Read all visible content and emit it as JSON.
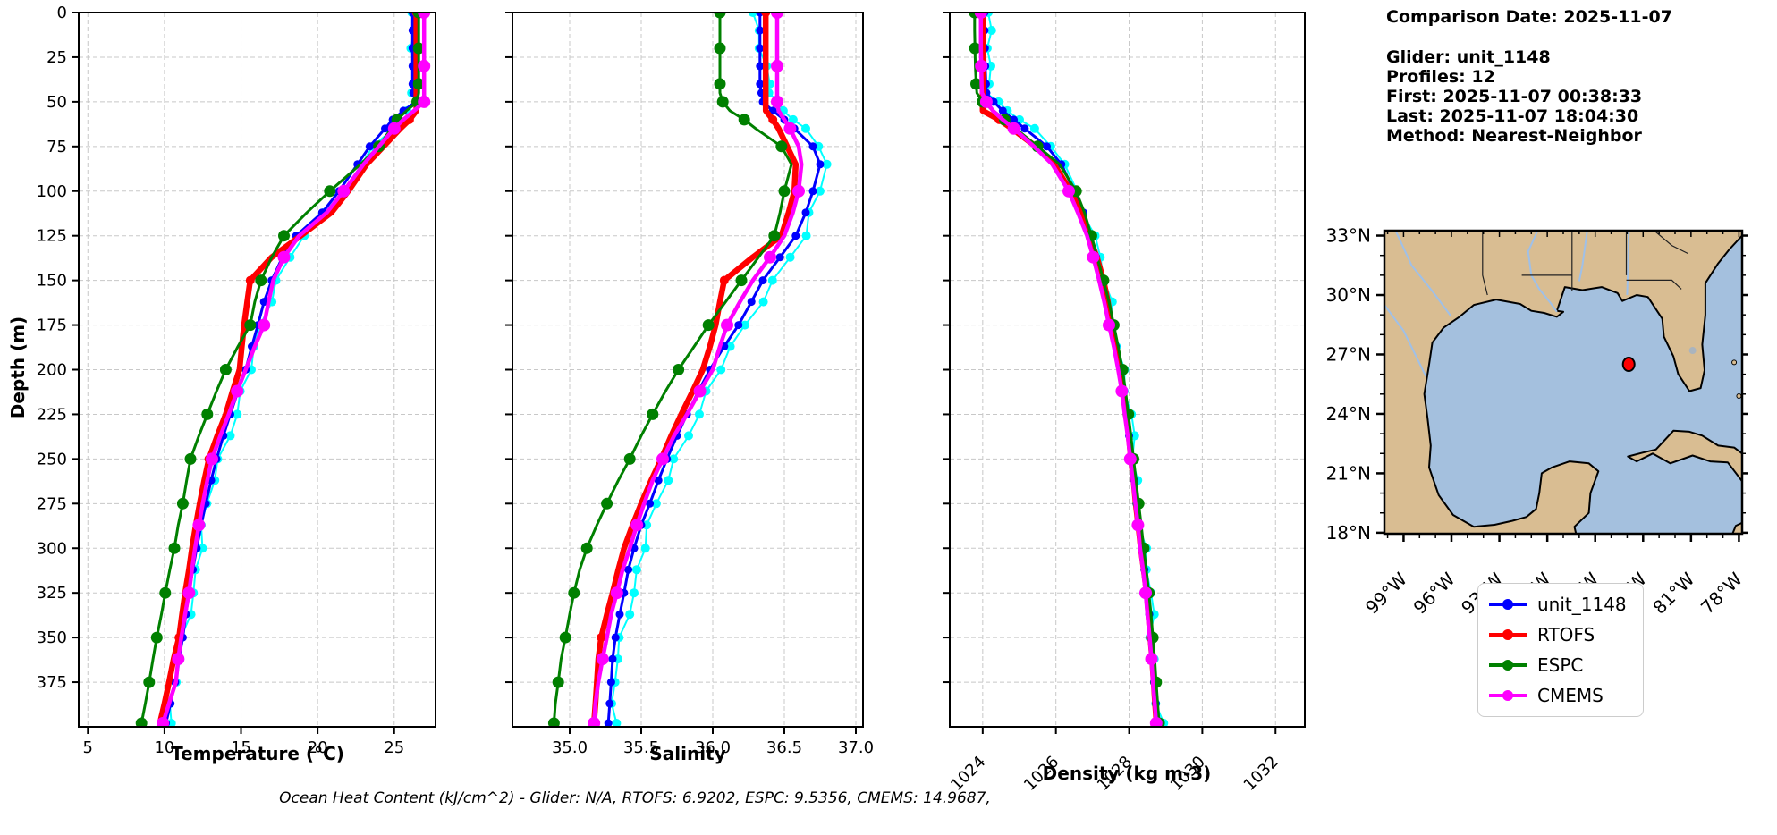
{
  "info_panel": {
    "date_line": "Comparison Date: 2025-11-07",
    "glider_line": "Glider: unit_1148",
    "profiles_line": "Profiles: 12",
    "first_line": "First: 2025-11-07 00:38:33",
    "last_line": "Last: 2025-11-07 18:04:30",
    "method_line": "Method: Nearest-Neighbor"
  },
  "caption": "Ocean Heat Content (kJ/cm^2) - Glider: N/A,  RTOFS: 6.9202,  ESPC: 9.5356,  CMEMS: 14.9687,",
  "legend": {
    "items": [
      {
        "label": "unit_1148",
        "color": "#0000ff"
      },
      {
        "label": "RTOFS",
        "color": "#ff0000"
      },
      {
        "label": "ESPC",
        "color": "#008000"
      },
      {
        "label": "CMEMS",
        "color": "#ff00ff"
      }
    ]
  },
  "chart_data": {
    "type": "line",
    "title": "",
    "ylabel": "Depth (m)",
    "ylim": [
      0,
      400
    ],
    "yticks": [
      0,
      25,
      50,
      75,
      100,
      125,
      150,
      175,
      200,
      225,
      250,
      275,
      300,
      325,
      350,
      375
    ],
    "grid": true,
    "depths": [
      0,
      10,
      20,
      30,
      40,
      45,
      50,
      55,
      60,
      65,
      75,
      85,
      100,
      112,
      125,
      137,
      150,
      162,
      175,
      187,
      200,
      212,
      225,
      237,
      250,
      262,
      275,
      287,
      300,
      312,
      325,
      337,
      350,
      362,
      375,
      387,
      398
    ],
    "panels": [
      {
        "id": "temperature",
        "xlabel": "Temperature (°C)",
        "xlim": [
          4.4,
          27.7
        ],
        "xticks": [
          5,
          10,
          15,
          20,
          25
        ],
        "xtick_labels": [
          "5",
          "10",
          "15",
          "20",
          "25"
        ],
        "rotate_xticks": false
      },
      {
        "id": "salinity",
        "xlabel": "Salinity",
        "xlim": [
          34.6,
          37.05
        ],
        "xticks": [
          35.0,
          35.5,
          36.0,
          36.5,
          37.0
        ],
        "xtick_labels": [
          "35.0",
          "35.5",
          "36.0",
          "36.5",
          "37.0"
        ],
        "rotate_xticks": false
      },
      {
        "id": "density",
        "xlabel": "Density (kg m-3)",
        "xlim": [
          1023.1,
          1032.8
        ],
        "xticks": [
          1024,
          1026,
          1028,
          1030,
          1032
        ],
        "xtick_labels": [
          "1024",
          "1026",
          "1028",
          "1030",
          "1032"
        ],
        "rotate_xticks": true
      }
    ],
    "series": [
      {
        "name": "profiles",
        "color": "#00ffff",
        "in_legend": false,
        "temperature": [
          26.15,
          26.1,
          26.15,
          26.2,
          26.3,
          26.4,
          26.5,
          25.9,
          25.2,
          24.7,
          23.7,
          22.9,
          21.7,
          20.7,
          19.0,
          18.1,
          17.3,
          16.8,
          16.4,
          16.0,
          15.6,
          15.1,
          14.6,
          14.1,
          13.6,
          13.2,
          12.9,
          12.6,
          12.3,
          12.05,
          11.8,
          11.55,
          11.3,
          11.05,
          10.8,
          10.5,
          10.2
        ],
        "salinity": [
          36.28,
          36.3,
          36.33,
          36.36,
          36.4,
          36.42,
          36.45,
          36.5,
          36.56,
          36.62,
          36.75,
          36.8,
          36.75,
          36.7,
          36.64,
          36.53,
          36.42,
          36.33,
          36.24,
          36.14,
          36.05,
          35.97,
          35.89,
          35.81,
          35.74,
          35.68,
          35.62,
          35.56,
          35.51,
          35.47,
          35.44,
          35.4,
          35.37,
          35.34,
          35.32,
          35.31,
          35.3
        ],
        "density": [
          1024.15,
          1024.15,
          1024.15,
          1024.16,
          1024.18,
          1024.2,
          1024.4,
          1024.7,
          1025.0,
          1025.3,
          1025.9,
          1026.25,
          1026.58,
          1026.82,
          1027.02,
          1027.17,
          1027.32,
          1027.45,
          1027.57,
          1027.72,
          1027.85,
          1027.93,
          1028.0,
          1028.07,
          1028.14,
          1028.2,
          1028.27,
          1028.34,
          1028.4,
          1028.48,
          1028.56,
          1028.61,
          1028.66,
          1028.7,
          1028.74,
          1028.79,
          1028.84
        ]
      },
      {
        "name": "unit_1148",
        "color": "#0000ff",
        "in_legend": true,
        "temperature": [
          26.2,
          26.2,
          26.2,
          26.2,
          26.2,
          26.25,
          26.4,
          25.6,
          24.9,
          24.4,
          23.4,
          22.6,
          21.4,
          20.3,
          18.6,
          17.7,
          17.0,
          16.5,
          16.1,
          15.7,
          15.3,
          14.8,
          14.3,
          13.85,
          13.4,
          13.05,
          12.7,
          12.4,
          12.1,
          11.85,
          11.6,
          11.4,
          11.2,
          10.95,
          10.7,
          10.4,
          10.1
        ],
        "salinity": [
          36.33,
          36.33,
          36.33,
          36.33,
          36.33,
          36.34,
          36.35,
          36.42,
          36.5,
          36.57,
          36.7,
          36.75,
          36.7,
          36.65,
          36.58,
          36.47,
          36.35,
          36.27,
          36.18,
          36.08,
          35.98,
          35.9,
          35.82,
          35.75,
          35.68,
          35.62,
          35.56,
          35.5,
          35.45,
          35.41,
          35.38,
          35.35,
          35.32,
          35.3,
          35.29,
          35.28,
          35.27
        ],
        "density": [
          1024.05,
          1024.05,
          1024.06,
          1024.07,
          1024.09,
          1024.1,
          1024.3,
          1024.55,
          1024.85,
          1025.15,
          1025.75,
          1026.15,
          1026.5,
          1026.75,
          1026.95,
          1027.1,
          1027.25,
          1027.38,
          1027.5,
          1027.64,
          1027.78,
          1027.86,
          1027.94,
          1028.0,
          1028.07,
          1028.14,
          1028.2,
          1028.27,
          1028.34,
          1028.42,
          1028.5,
          1028.55,
          1028.6,
          1028.64,
          1028.68,
          1028.73,
          1028.78
        ]
      },
      {
        "name": "RTOFS",
        "color": "#ff0000",
        "in_legend": true,
        "temperature": [
          26.45,
          26.45,
          26.45,
          26.45,
          26.45,
          26.45,
          26.45,
          26.45,
          26.0,
          25.4,
          24.3,
          23.2,
          22.0,
          20.9,
          18.9,
          17.0,
          15.6,
          15.4,
          15.2,
          15.05,
          14.9,
          14.45,
          14.0,
          13.45,
          12.9,
          12.6,
          12.3,
          12.05,
          11.8,
          11.6,
          11.35,
          11.15,
          10.95,
          10.6,
          10.3,
          10.0,
          9.7
        ],
        "salinity": [
          36.37,
          36.37,
          36.37,
          36.37,
          36.37,
          36.37,
          36.37,
          36.37,
          36.42,
          36.46,
          36.52,
          36.58,
          36.57,
          36.53,
          36.48,
          36.28,
          36.08,
          36.05,
          36.02,
          35.98,
          35.93,
          35.86,
          35.78,
          35.71,
          35.64,
          35.57,
          35.5,
          35.44,
          35.38,
          35.34,
          35.3,
          35.26,
          35.22,
          35.2,
          35.19,
          35.18,
          35.17
        ],
        "density": [
          1024.0,
          1024.0,
          1024.0,
          1024.0,
          1024.0,
          1024.0,
          1024.0,
          1024.0,
          1024.45,
          1024.8,
          1025.45,
          1025.95,
          1026.4,
          1026.67,
          1026.9,
          1027.12,
          1027.3,
          1027.42,
          1027.52,
          1027.64,
          1027.76,
          1027.84,
          1027.92,
          1027.99,
          1028.05,
          1028.12,
          1028.18,
          1028.25,
          1028.32,
          1028.4,
          1028.48,
          1028.53,
          1028.58,
          1028.63,
          1028.67,
          1028.71,
          1028.75
        ]
      },
      {
        "name": "ESPC",
        "color": "#008000",
        "in_legend": true,
        "temperature": [
          26.6,
          26.6,
          26.6,
          26.6,
          26.6,
          26.6,
          26.5,
          25.8,
          25.2,
          24.8,
          24.0,
          22.8,
          20.8,
          19.3,
          17.8,
          17.0,
          16.3,
          15.9,
          15.6,
          14.8,
          14.0,
          13.4,
          12.8,
          12.25,
          11.7,
          11.45,
          11.2,
          10.9,
          10.65,
          10.35,
          10.05,
          9.8,
          9.5,
          9.25,
          9.0,
          8.75,
          8.5
        ],
        "salinity": [
          36.05,
          36.05,
          36.05,
          36.05,
          36.05,
          36.05,
          36.07,
          36.12,
          36.22,
          36.3,
          36.48,
          36.55,
          36.5,
          36.47,
          36.43,
          36.32,
          36.2,
          36.09,
          35.97,
          35.87,
          35.76,
          35.67,
          35.58,
          35.5,
          35.42,
          35.34,
          35.26,
          35.19,
          35.12,
          35.07,
          35.03,
          35.0,
          34.97,
          34.94,
          34.92,
          34.9,
          34.89
        ],
        "density": [
          1023.78,
          1023.78,
          1023.79,
          1023.8,
          1023.82,
          1023.84,
          1024.0,
          1024.3,
          1024.6,
          1024.9,
          1025.5,
          1026.1,
          1026.55,
          1026.78,
          1026.97,
          1027.13,
          1027.3,
          1027.45,
          1027.58,
          1027.7,
          1027.82,
          1027.9,
          1027.98,
          1028.05,
          1028.12,
          1028.19,
          1028.26,
          1028.33,
          1028.4,
          1028.47,
          1028.54,
          1028.6,
          1028.65,
          1028.7,
          1028.74,
          1028.78,
          1028.82
        ]
      },
      {
        "name": "CMEMS",
        "color": "#ff00ff",
        "in_legend": true,
        "temperature": [
          26.95,
          26.95,
          26.95,
          26.95,
          26.95,
          26.95,
          26.95,
          26.3,
          25.6,
          25.0,
          24.0,
          23.0,
          21.7,
          20.6,
          18.8,
          17.8,
          17.1,
          16.8,
          16.5,
          15.9,
          15.3,
          14.75,
          14.2,
          13.65,
          13.1,
          12.8,
          12.5,
          12.25,
          12.0,
          11.8,
          11.6,
          11.35,
          11.1,
          10.9,
          10.75,
          10.3,
          9.9
        ],
        "salinity": [
          36.45,
          36.45,
          36.45,
          36.45,
          36.45,
          36.45,
          36.45,
          36.46,
          36.5,
          36.54,
          36.6,
          36.62,
          36.6,
          36.56,
          36.5,
          36.4,
          36.28,
          36.19,
          36.1,
          36.05,
          36.0,
          35.91,
          35.82,
          35.73,
          35.65,
          35.58,
          35.52,
          35.47,
          35.42,
          35.37,
          35.33,
          35.29,
          35.26,
          35.23,
          35.2,
          35.18,
          35.17
        ],
        "density": [
          1023.95,
          1023.95,
          1023.95,
          1023.96,
          1023.97,
          1023.98,
          1024.1,
          1024.28,
          1024.55,
          1024.85,
          1025.4,
          1025.9,
          1026.35,
          1026.6,
          1026.85,
          1027.02,
          1027.18,
          1027.32,
          1027.45,
          1027.58,
          1027.7,
          1027.8,
          1027.88,
          1027.96,
          1028.03,
          1028.1,
          1028.17,
          1028.24,
          1028.3,
          1028.38,
          1028.45,
          1028.5,
          1028.56,
          1028.61,
          1028.65,
          1028.7,
          1028.74
        ]
      }
    ]
  },
  "map": {
    "lat_tick_labels": [
      "33°N",
      "30°N",
      "27°N",
      "24°N",
      "21°N",
      "18°N"
    ],
    "lon_tick_labels": [
      "99°W",
      "96°W",
      "93°W",
      "90°W",
      "87°W",
      "84°W",
      "81°W",
      "78°W"
    ],
    "marker": {
      "lat": 26.5,
      "lon": -84.9,
      "color": "#ff0000"
    },
    "land_color": "#d9bd92",
    "ocean_color": "#a4c0de"
  }
}
